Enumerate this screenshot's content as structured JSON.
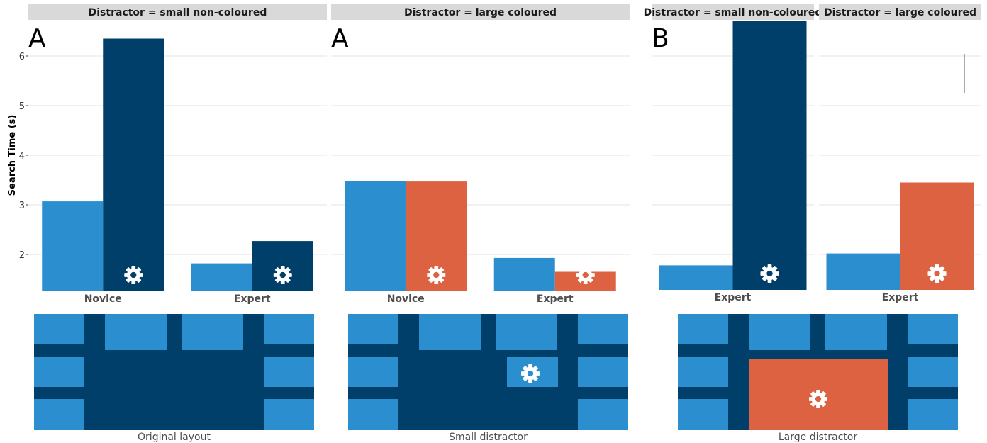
{
  "colors": {
    "light_blue": "#2b8ecf",
    "dark_blue": "#003f69",
    "orange": "#dd6241",
    "strip_bg": "#d9d9d9",
    "grid": "#e3e3e3"
  },
  "chart_data": [
    {
      "type": "bar",
      "panel_letter": "A",
      "strip": "Distractor = small non-coloured",
      "ylabel": "Search Time (s)",
      "categories": [
        "Novice",
        "Expert"
      ],
      "series": [
        {
          "color": "#2b8ecf",
          "icon": "",
          "values": [
            3.07,
            1.82
          ]
        },
        {
          "color": "#003f69",
          "icon": "gear-icon",
          "values": [
            6.35,
            2.27
          ]
        }
      ],
      "ylim": [
        1.7,
        6.75
      ],
      "y_ticks": [
        2,
        3,
        4,
        5,
        6
      ],
      "grid": true
    },
    {
      "type": "bar",
      "panel_letter": "A",
      "strip": "Distractor = large coloured",
      "categories": [
        "Novice",
        "Expert"
      ],
      "series": [
        {
          "color": "#2b8ecf",
          "icon": "",
          "values": [
            3.48,
            1.93
          ]
        },
        {
          "color": "#dd6241",
          "icon": "gear-icon",
          "values": [
            3.47,
            1.65
          ]
        }
      ],
      "ylim": [
        1.7,
        6.75
      ],
      "y_ticks": [
        2,
        3,
        4,
        5,
        6
      ],
      "grid": true
    },
    {
      "type": "bar",
      "panel_letter": "B",
      "strip": "Distractor = small non-coloured",
      "categories": [
        "Expert"
      ],
      "series": [
        {
          "color": "#2b8ecf",
          "icon": "",
          "values": [
            1.78
          ]
        },
        {
          "color": "#003f69",
          "icon": "gear-icon",
          "values": [
            6.78
          ]
        }
      ],
      "ylim": [
        1.7,
        6.75
      ],
      "y_ticks": [
        2,
        3,
        4,
        5,
        6
      ],
      "grid": true
    },
    {
      "type": "bar",
      "panel_letter": "",
      "strip": "Distractor = large coloured",
      "categories": [
        "Expert"
      ],
      "series": [
        {
          "color": "#2b8ecf",
          "icon": "",
          "values": [
            2.02
          ]
        },
        {
          "color": "#dd6241",
          "icon": "gear-icon",
          "values": [
            3.45
          ]
        }
      ],
      "ylim": [
        1.7,
        6.75
      ],
      "y_ticks": [
        2,
        3,
        4,
        5,
        6
      ],
      "grid": true
    }
  ],
  "layouts": [
    {
      "caption": "Original layout",
      "distractor": "none"
    },
    {
      "caption": "Small distractor",
      "distractor": "small"
    },
    {
      "caption": "Large distractor",
      "distractor": "large"
    }
  ]
}
